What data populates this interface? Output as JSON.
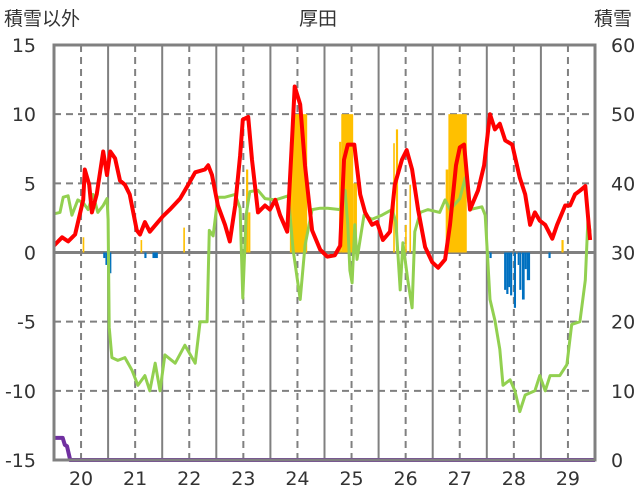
{
  "chart_data": {
    "type": "line",
    "title": "厚田",
    "ylabel_left": "積雪以外",
    "ylabel_right": "積雪",
    "x_ticks": [
      "20",
      "21",
      "22",
      "23",
      "24",
      "25",
      "26",
      "27",
      "28",
      "29"
    ],
    "x_tick_values": [
      20,
      21,
      22,
      23,
      24,
      25,
      26,
      27,
      28,
      29
    ],
    "xlim": [
      19.5,
      29.5
    ],
    "ylim_left": [
      -15,
      15
    ],
    "ylim_right": [
      0,
      60
    ],
    "y_ticks_left": [
      "15",
      "10",
      "5",
      "0",
      "-5",
      "-10",
      "-15"
    ],
    "y_tick_values_left": [
      15,
      10,
      5,
      0,
      -5,
      -10,
      -15
    ],
    "y_ticks_right": [
      "60",
      "50",
      "40",
      "30",
      "20",
      "10",
      "0"
    ],
    "y_tick_values_right": [
      60,
      50,
      40,
      30,
      20,
      10,
      0
    ],
    "colors": {
      "red": "#ff0000",
      "green": "#92d050",
      "orange": "#ffc000",
      "blue": "#0070c0",
      "purple": "#7030a0",
      "grid": "#808080"
    },
    "series": [
      {
        "name": "red",
        "axis": "left",
        "points": [
          [
            19.5,
            0.5
          ],
          [
            19.65,
            1.1
          ],
          [
            19.76,
            0.8
          ],
          [
            19.89,
            1.3
          ],
          [
            20.04,
            3.8
          ],
          [
            20.07,
            6
          ],
          [
            20.15,
            4.9
          ],
          [
            20.2,
            2.9
          ],
          [
            20.29,
            4.2
          ],
          [
            20.41,
            7.3
          ],
          [
            20.48,
            5.6
          ],
          [
            20.54,
            7.3
          ],
          [
            20.63,
            6.8
          ],
          [
            20.72,
            5.2
          ],
          [
            20.81,
            4.9
          ],
          [
            20.9,
            4.2
          ],
          [
            21.03,
            1.6
          ],
          [
            21.09,
            1.3
          ],
          [
            21.18,
            2.2
          ],
          [
            21.27,
            1.5
          ],
          [
            21.4,
            2.1
          ],
          [
            21.51,
            2.6
          ],
          [
            21.64,
            3.1
          ],
          [
            21.83,
            3.9
          ],
          [
            21.98,
            4.9
          ],
          [
            22.11,
            5.8
          ],
          [
            22.29,
            6
          ],
          [
            22.35,
            6.3
          ],
          [
            22.42,
            5.6
          ],
          [
            22.53,
            3.4
          ],
          [
            22.66,
            2
          ],
          [
            22.75,
            0.8
          ],
          [
            22.85,
            3.4
          ],
          [
            22.94,
            7
          ],
          [
            22.99,
            9.6
          ],
          [
            23.09,
            9.8
          ],
          [
            23.16,
            6.7
          ],
          [
            23.27,
            2.9
          ],
          [
            23.4,
            3.4
          ],
          [
            23.49,
            3.1
          ],
          [
            23.59,
            3.8
          ],
          [
            23.68,
            2.7
          ],
          [
            23.81,
            1.5
          ],
          [
            23.9,
            8.1
          ],
          [
            23.95,
            12
          ],
          [
            24.05,
            10.7
          ],
          [
            24.14,
            6.3
          ],
          [
            24.27,
            1.6
          ],
          [
            24.42,
            0.2
          ],
          [
            24.55,
            -0.3
          ],
          [
            24.69,
            -0.2
          ],
          [
            24.79,
            0.5
          ],
          [
            24.86,
            6.7
          ],
          [
            24.93,
            7.8
          ],
          [
            25.05,
            7.8
          ],
          [
            25.16,
            4.2
          ],
          [
            25.25,
            2.9
          ],
          [
            25.38,
            2
          ],
          [
            25.47,
            2.2
          ],
          [
            25.58,
            0.9
          ],
          [
            25.71,
            1.5
          ],
          [
            25.8,
            4.9
          ],
          [
            25.93,
            6.7
          ],
          [
            26.02,
            7.4
          ],
          [
            26.12,
            6
          ],
          [
            26.23,
            3.1
          ],
          [
            26.36,
            0.4
          ],
          [
            26.49,
            -0.7
          ],
          [
            26.6,
            -1.1
          ],
          [
            26.73,
            -0.5
          ],
          [
            26.82,
            2
          ],
          [
            26.93,
            6.3
          ],
          [
            27.0,
            7.6
          ],
          [
            27.08,
            7.8
          ],
          [
            27.19,
            3.1
          ],
          [
            27.34,
            4.5
          ],
          [
            27.45,
            6.3
          ],
          [
            27.56,
            10
          ],
          [
            27.65,
            8.9
          ],
          [
            27.74,
            9.3
          ],
          [
            27.84,
            8.1
          ],
          [
            27.97,
            7.8
          ],
          [
            28.11,
            5.4
          ],
          [
            28.21,
            4.2
          ],
          [
            28.3,
            2
          ],
          [
            28.39,
            2.9
          ],
          [
            28.48,
            2.3
          ],
          [
            28.58,
            2
          ],
          [
            28.71,
            1
          ],
          [
            28.8,
            2
          ],
          [
            28.95,
            3.4
          ],
          [
            29.04,
            3.4
          ],
          [
            29.13,
            4.2
          ],
          [
            29.23,
            4.5
          ],
          [
            29.32,
            4.8
          ],
          [
            29.41,
            0.9
          ]
        ]
      },
      {
        "name": "green",
        "axis": "left",
        "points": [
          [
            19.5,
            2.8
          ],
          [
            19.61,
            2.9
          ],
          [
            19.67,
            4
          ],
          [
            19.76,
            4.1
          ],
          [
            19.83,
            2.7
          ],
          [
            19.94,
            3.8
          ],
          [
            20.04,
            3.6
          ],
          [
            20.13,
            3.1
          ],
          [
            20.22,
            4.2
          ],
          [
            20.31,
            2.9
          ],
          [
            20.41,
            3.4
          ],
          [
            20.48,
            3.9
          ],
          [
            20.5,
            2.4
          ],
          [
            20.52,
            -5.4
          ],
          [
            20.57,
            -7.6
          ],
          [
            20.68,
            -7.8
          ],
          [
            20.81,
            -7.6
          ],
          [
            20.94,
            -8.5
          ],
          [
            21.05,
            -9.6
          ],
          [
            21.18,
            -8.9
          ],
          [
            21.27,
            -10
          ],
          [
            21.37,
            -8
          ],
          [
            21.46,
            -10
          ],
          [
            21.55,
            -7.4
          ],
          [
            21.74,
            -8
          ],
          [
            21.92,
            -6.7
          ],
          [
            22.11,
            -8
          ],
          [
            22.2,
            -5
          ],
          [
            22.33,
            -5
          ],
          [
            22.37,
            1.6
          ],
          [
            22.44,
            1.2
          ],
          [
            22.53,
            4
          ],
          [
            22.66,
            4
          ],
          [
            22.85,
            4.2
          ],
          [
            22.94,
            3.2
          ],
          [
            22.99,
            -3.3
          ],
          [
            23.05,
            2.7
          ],
          [
            23.12,
            4.4
          ],
          [
            23.27,
            4.5
          ],
          [
            23.4,
            3.9
          ],
          [
            23.59,
            3.8
          ],
          [
            23.83,
            4.1
          ],
          [
            23.92,
            0.2
          ],
          [
            24.05,
            -3.4
          ],
          [
            24.14,
            0.5
          ],
          [
            24.27,
            3.1
          ],
          [
            24.42,
            3.2
          ],
          [
            24.56,
            3.2
          ],
          [
            24.79,
            3.1
          ],
          [
            24.88,
            4.5
          ],
          [
            24.93,
            2
          ],
          [
            24.97,
            -1.3
          ],
          [
            25.01,
            -2.2
          ],
          [
            25.06,
            2
          ],
          [
            25.1,
            -0.5
          ],
          [
            25.23,
            2.7
          ],
          [
            25.38,
            2.4
          ],
          [
            25.56,
            2.7
          ],
          [
            25.75,
            3.1
          ],
          [
            25.82,
            2.2
          ],
          [
            25.9,
            -2.7
          ],
          [
            25.95,
            0.7
          ],
          [
            26.04,
            -2
          ],
          [
            26.12,
            -4
          ],
          [
            26.17,
            1.5
          ],
          [
            26.27,
            2.9
          ],
          [
            26.41,
            3.1
          ],
          [
            26.63,
            2.9
          ],
          [
            26.73,
            3.8
          ],
          [
            26.82,
            3.1
          ],
          [
            27.0,
            3.9
          ],
          [
            27.1,
            5.4
          ],
          [
            27.19,
            3.1
          ],
          [
            27.41,
            3.3
          ],
          [
            27.47,
            2.7
          ],
          [
            27.56,
            -3.4
          ],
          [
            27.65,
            -4.9
          ],
          [
            27.74,
            -7
          ],
          [
            27.8,
            -9.6
          ],
          [
            27.93,
            -9.2
          ],
          [
            28.02,
            -10
          ],
          [
            28.11,
            -11.5
          ],
          [
            28.21,
            -10.3
          ],
          [
            28.39,
            -10
          ],
          [
            28.48,
            -8.9
          ],
          [
            28.58,
            -10
          ],
          [
            28.67,
            -8.9
          ],
          [
            28.85,
            -8.9
          ],
          [
            28.98,
            -8.1
          ],
          [
            29.07,
            -5.2
          ],
          [
            29.22,
            -5
          ],
          [
            29.32,
            -2
          ],
          [
            29.37,
            2.5
          ],
          [
            29.41,
            1.5
          ]
        ]
      },
      {
        "name": "purple",
        "axis": "right",
        "points": [
          [
            19.5,
            3.2
          ],
          [
            19.66,
            3.2
          ],
          [
            19.7,
            2.2
          ],
          [
            19.74,
            2
          ],
          [
            19.8,
            0
          ],
          [
            29.5,
            0
          ]
        ]
      }
    ],
    "bars": [
      {
        "name": "orange",
        "axis": "left",
        "items": [
          [
            20.03,
            20.06,
            1.1
          ],
          [
            21.1,
            21.13,
            0.9
          ],
          [
            21.89,
            21.92,
            1.8
          ],
          [
            23.05,
            23.09,
            6
          ],
          [
            23.09,
            23.13,
            2.9
          ],
          [
            23.86,
            23.9,
            8
          ],
          [
            23.9,
            24.18,
            10
          ],
          [
            24.77,
            24.81,
            8
          ],
          [
            24.81,
            25.03,
            10
          ],
          [
            25.03,
            25.1,
            5
          ],
          [
            25.77,
            25.8,
            7.9
          ],
          [
            25.82,
            25.86,
            8.9
          ],
          [
            25.99,
            26.02,
            2
          ],
          [
            26.07,
            26.1,
            4.9
          ],
          [
            26.74,
            26.79,
            6
          ],
          [
            26.79,
            27.13,
            10
          ],
          [
            28.88,
            28.92,
            0.9
          ]
        ]
      },
      {
        "name": "blue",
        "axis": "left",
        "items": [
          [
            20.41,
            20.45,
            -0.4
          ],
          [
            20.45,
            20.48,
            -0.9
          ],
          [
            20.52,
            20.56,
            -1.5
          ],
          [
            21.17,
            21.21,
            -0.4
          ],
          [
            21.32,
            21.42,
            -0.4
          ],
          [
            27.55,
            27.59,
            -0.4
          ],
          [
            27.82,
            27.86,
            -2.7
          ],
          [
            27.86,
            27.9,
            -3
          ],
          [
            27.9,
            27.93,
            -2.5
          ],
          [
            27.93,
            27.97,
            -3.1
          ],
          [
            28.0,
            28.04,
            -4
          ],
          [
            28.07,
            28.1,
            -0.9
          ],
          [
            28.1,
            28.14,
            -2.7
          ],
          [
            28.15,
            28.2,
            -3.4
          ],
          [
            28.2,
            28.24,
            -1.2
          ],
          [
            28.24,
            28.3,
            -2
          ],
          [
            28.64,
            28.68,
            -0.4
          ]
        ]
      }
    ]
  }
}
